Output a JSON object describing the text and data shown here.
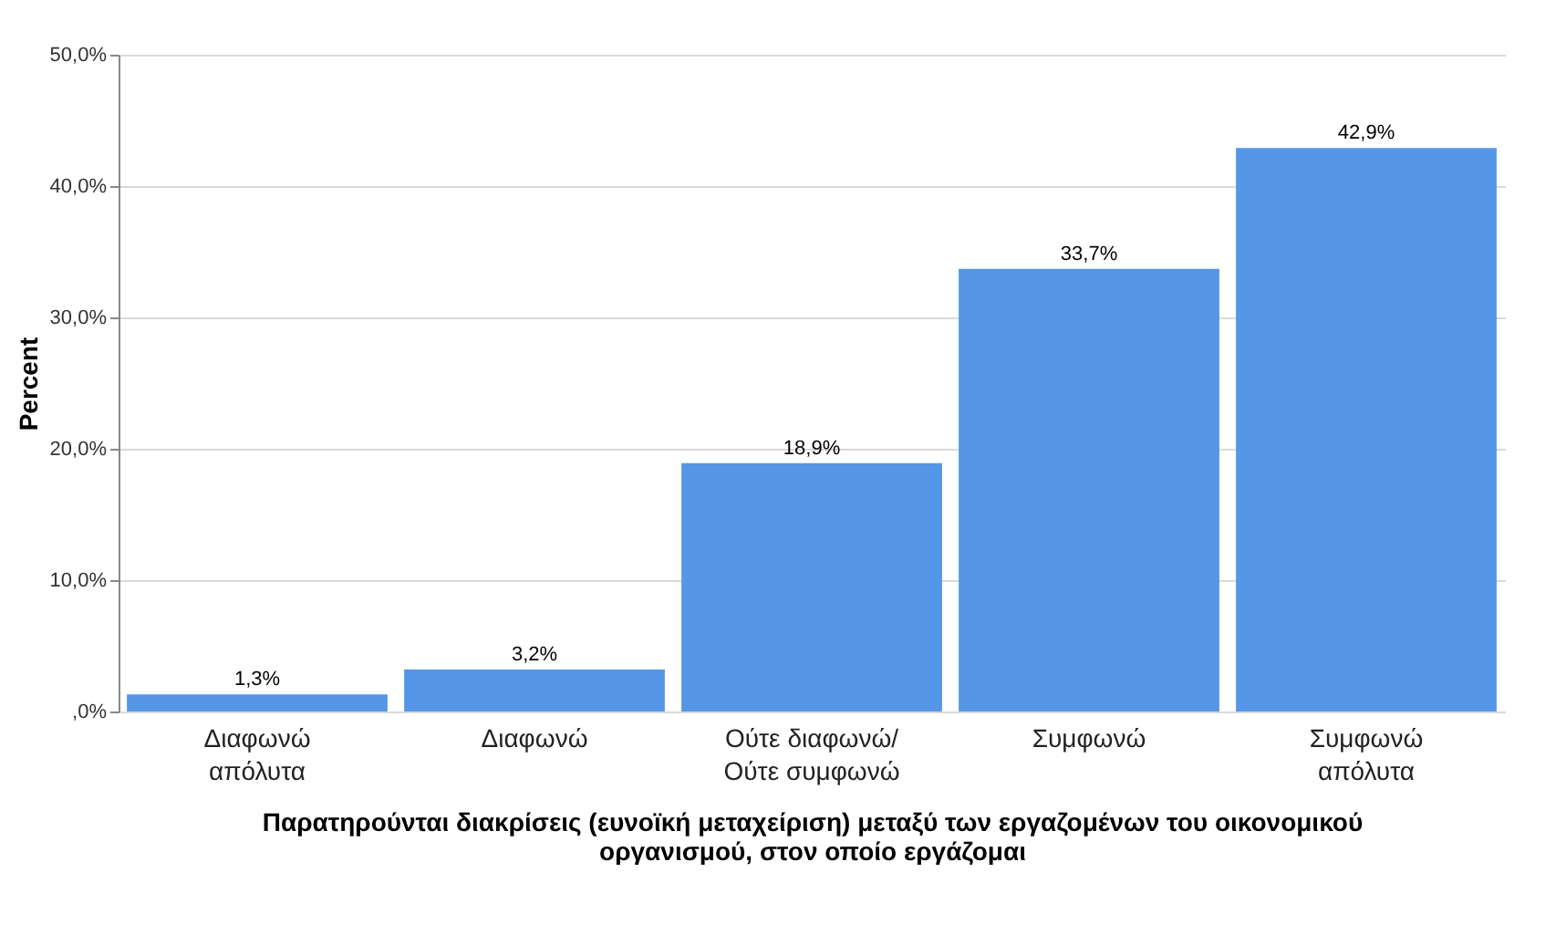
{
  "chart_data": {
    "type": "bar",
    "xlabel": "Παρατηρούνται διακρίσεις (ευνοϊκή μεταχείριση) μεταξύ των εργαζομένων του οικονομικού\nοργανισμού, στον οποίο εργάζομαι",
    "ylabel": "Percent",
    "categories": [
      "Διαφωνώ\nαπόλυτα",
      "Διαφωνώ",
      "Ούτε διαφωνώ/\nΟύτε συμφωνώ",
      "Συμφωνώ",
      "Συμφωνώ\nαπόλυτα"
    ],
    "values": [
      1.3,
      3.2,
      18.9,
      33.7,
      42.9
    ],
    "value_labels": [
      "1,3%",
      "3,2%",
      "18,9%",
      "33,7%",
      "42,9%"
    ],
    "color": "#5596e6",
    "ylim": [
      0,
      50
    ],
    "yticks": [
      {
        "value": 0,
        "label": ",0%"
      },
      {
        "value": 10,
        "label": "10,0%"
      },
      {
        "value": 20,
        "label": "20,0%"
      },
      {
        "value": 30,
        "label": "30,0%"
      },
      {
        "value": 40,
        "label": "40,0%"
      },
      {
        "value": 50,
        "label": "50,0%"
      }
    ],
    "grid": "y"
  }
}
